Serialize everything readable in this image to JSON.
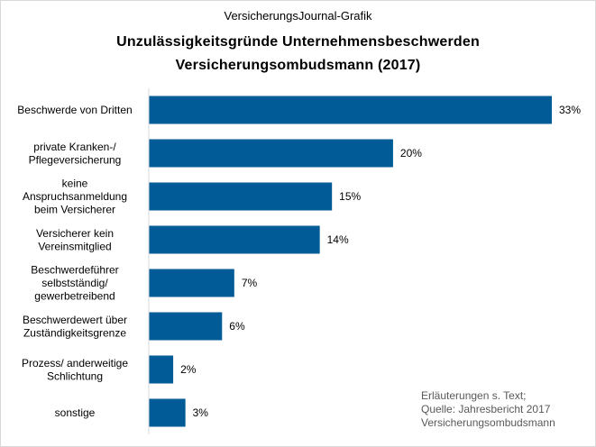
{
  "chart_data": {
    "type": "bar",
    "orientation": "horizontal",
    "subtitle": "VersicherungsJournal-Grafik",
    "title_lines": [
      "Unzulässigkeitsgründe  Unternehmensbeschwerden",
      "Versicherungsombudsmann  (2017)"
    ],
    "categories": [
      [
        "Beschwerde von Dritten"
      ],
      [
        "private Kranken-/",
        "Pflegeversicherung"
      ],
      [
        "keine",
        "Anspruchsanmeldung",
        "beim Versicherer"
      ],
      [
        "Versicherer kein",
        "Vereinsmitglied"
      ],
      [
        "Beschwerdeführer",
        "selbstständig/",
        "gewerbetreibend"
      ],
      [
        "Beschwerdewert über",
        "Zuständigkeitsgrenze"
      ],
      [
        "Prozess/ anderweitige",
        "Schlichtung"
      ],
      [
        "sonstige"
      ]
    ],
    "values": [
      33,
      20,
      15,
      14,
      7,
      6,
      2,
      3
    ],
    "value_labels": [
      "33%",
      "20%",
      "15%",
      "14%",
      "7%",
      "6%",
      "2%",
      "3%"
    ],
    "unit": "%",
    "xlim": [
      0,
      33
    ],
    "grid": false,
    "bar_color": "#005b96",
    "note_lines": [
      "Erläuterungen  s. Text;",
      "Quelle:  Jahresbericht  2017",
      "Versicherungsombudsmann"
    ]
  }
}
